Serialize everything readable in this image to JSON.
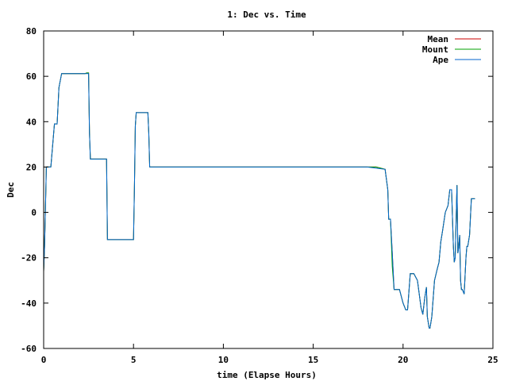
{
  "chart_data": {
    "type": "line",
    "title": "1: Dec vs. Time",
    "xlabel": "time (Elapse Hours)",
    "ylabel": "Dec",
    "xlim": [
      0,
      25
    ],
    "ylim": [
      -60,
      80
    ],
    "xticks": [
      0,
      5,
      10,
      15,
      20,
      25
    ],
    "yticks": [
      -60,
      -40,
      -20,
      0,
      20,
      40,
      60,
      80
    ],
    "grid": false,
    "legend_position": "top-right",
    "series": [
      {
        "name": "Mean",
        "color": "#cc0000",
        "x": [
          0.0,
          0.05,
          0.1,
          0.15,
          0.25,
          0.4,
          0.6,
          0.75,
          0.85,
          1.0,
          1.5,
          2.0,
          2.3,
          2.4,
          2.45,
          2.5,
          2.55,
          2.6,
          2.65,
          3.5,
          3.55,
          3.7,
          5.0,
          5.05,
          5.1,
          5.15,
          5.2,
          5.3,
          5.8,
          5.85,
          5.9,
          6.0,
          8.0,
          10.0,
          12.0,
          14.0,
          16.0,
          18.0,
          18.5,
          19.0,
          19.15,
          19.2,
          19.3,
          19.4,
          19.5,
          19.6,
          19.8,
          20.0,
          20.15,
          20.25,
          20.4,
          20.6,
          20.8,
          21.0,
          21.1,
          21.2,
          21.3,
          21.35,
          21.45,
          21.5,
          21.6,
          21.75,
          21.9,
          22.0,
          22.1,
          22.2,
          22.35,
          22.5,
          22.6,
          22.7,
          22.8,
          22.85,
          22.9,
          23.0,
          23.05,
          23.1,
          23.15,
          23.2,
          23.25,
          23.3,
          23.4,
          23.5,
          23.55,
          23.6,
          23.7,
          23.8,
          23.85,
          23.9,
          24.0
        ],
        "y": [
          -26,
          -15,
          2,
          20,
          20,
          20,
          39,
          39,
          55,
          61.2,
          61.2,
          61.2,
          61.2,
          61.5,
          61.5,
          61.5,
          35,
          23.5,
          23.5,
          23.5,
          -12,
          -12,
          -12,
          10,
          38,
          44,
          44,
          44,
          44,
          35,
          20,
          20,
          20,
          20,
          20,
          20,
          20,
          20,
          20,
          19,
          10,
          -3,
          -3,
          -18,
          -34,
          -34,
          -34,
          -40,
          -43,
          -43,
          -27,
          -27,
          -30,
          -42,
          -45,
          -38,
          -33,
          -46,
          -51,
          -51,
          -46,
          -30,
          -25,
          -22,
          -13,
          -8,
          0,
          3,
          10,
          10,
          -15,
          -22,
          -20,
          12,
          -18,
          -15,
          -10,
          -30,
          -34,
          -34,
          -36,
          -20,
          -15,
          -15,
          -10,
          6,
          6,
          6,
          6
        ]
      },
      {
        "name": "Mount",
        "color": "#00a000",
        "x": [
          0.0,
          0.05,
          0.1,
          0.15,
          0.25,
          0.4,
          0.6,
          0.75,
          0.85,
          1.0,
          1.5,
          2.0,
          2.3,
          2.4,
          2.45,
          2.5,
          2.55,
          2.6,
          2.65,
          3.5,
          3.55,
          3.7,
          5.0,
          5.05,
          5.1,
          5.15,
          5.2,
          5.3,
          5.8,
          5.85,
          5.9,
          6.0,
          8.0,
          10.0,
          12.0,
          14.0,
          16.0,
          18.0,
          18.5,
          19.0,
          19.15,
          19.2,
          19.3,
          19.4,
          19.5,
          19.6,
          19.8,
          20.0,
          20.15,
          20.25,
          20.4,
          20.6,
          20.8,
          21.0,
          21.1,
          21.2,
          21.3,
          21.35,
          21.45,
          21.5,
          21.6,
          21.75,
          21.9,
          22.0,
          22.1,
          22.2,
          22.35,
          22.5,
          22.6,
          22.7,
          22.8,
          22.85,
          22.9,
          23.0,
          23.05,
          23.1,
          23.15,
          23.2,
          23.25,
          23.3,
          23.4,
          23.5,
          23.55,
          23.6,
          23.7,
          23.8,
          23.85,
          23.9,
          24.0
        ],
        "y": [
          -26,
          -15,
          2,
          20,
          20,
          20,
          39,
          39,
          55,
          61.2,
          61.2,
          61.2,
          61.2,
          61.5,
          61.5,
          61.5,
          35,
          23.5,
          23.5,
          23.5,
          -12,
          -12,
          -12,
          10,
          38,
          44,
          44,
          44,
          44,
          35,
          20,
          20,
          20,
          20,
          20,
          20,
          20,
          20,
          20,
          19,
          10,
          -3,
          -3,
          -24,
          -34,
          -34,
          -34,
          -40,
          -43,
          -43,
          -27,
          -27,
          -30,
          -42,
          -45,
          -38,
          -33,
          -46,
          -51,
          -51,
          -46,
          -30,
          -25,
          -22,
          -13,
          -8,
          0,
          3,
          10,
          10,
          -15,
          -22,
          -20,
          12,
          -18,
          -15,
          -10,
          -30,
          -34,
          -34,
          -36,
          -20,
          -15,
          -15,
          -10,
          6,
          6,
          6,
          6
        ]
      },
      {
        "name": "Ape",
        "color": "#0066cc",
        "x": [
          0.0,
          0.05,
          0.1,
          0.15,
          0.25,
          0.4,
          0.6,
          0.75,
          0.85,
          1.0,
          1.5,
          2.0,
          2.3,
          2.4,
          2.45,
          2.5,
          2.55,
          2.6,
          2.65,
          3.5,
          3.55,
          3.7,
          5.0,
          5.05,
          5.1,
          5.15,
          5.2,
          5.3,
          5.8,
          5.85,
          5.9,
          6.0,
          8.0,
          10.0,
          12.0,
          14.0,
          16.0,
          18.0,
          18.5,
          19.0,
          19.15,
          19.2,
          19.3,
          19.4,
          19.5,
          19.6,
          19.8,
          20.0,
          20.15,
          20.25,
          20.4,
          20.6,
          20.8,
          21.0,
          21.1,
          21.2,
          21.3,
          21.35,
          21.45,
          21.5,
          21.6,
          21.75,
          21.9,
          22.0,
          22.1,
          22.2,
          22.35,
          22.5,
          22.6,
          22.7,
          22.8,
          22.85,
          22.9,
          23.0,
          23.05,
          23.1,
          23.15,
          23.2,
          23.25,
          23.3,
          23.4,
          23.5,
          23.55,
          23.6,
          23.7,
          23.8,
          23.85,
          23.9,
          24.0
        ],
        "y": [
          -26,
          -15,
          2,
          20,
          20,
          20,
          39,
          39,
          55,
          61.2,
          61.2,
          61.2,
          61.2,
          61.2,
          61.2,
          61.2,
          35,
          23.5,
          23.5,
          23.5,
          -12,
          -12,
          -12,
          10,
          38,
          44,
          44,
          44,
          44,
          35,
          20,
          20,
          20,
          20,
          20,
          20,
          20,
          20,
          19.5,
          19,
          10,
          -3,
          -3,
          -18,
          -34,
          -34,
          -34,
          -40,
          -43,
          -43,
          -27,
          -27,
          -30,
          -42,
          -45,
          -38,
          -33,
          -46,
          -51,
          -51,
          -46,
          -30,
          -25,
          -22,
          -13,
          -8,
          0,
          3,
          10,
          10,
          -15,
          -22,
          -20,
          12,
          -18,
          -15,
          -10,
          -30,
          -34,
          -34,
          -36,
          -20,
          -15,
          -15,
          -10,
          6,
          6,
          6,
          6
        ]
      }
    ]
  }
}
